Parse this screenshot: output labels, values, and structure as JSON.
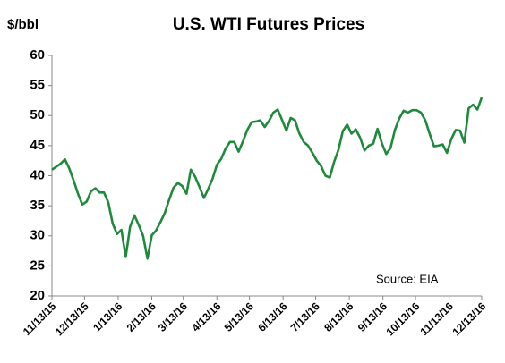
{
  "chart_data": {
    "type": "line",
    "title": "U.S. WTI Futures Prices",
    "y_label": "$/bbl",
    "annotation": "Source: EIA",
    "x": [
      "2015-11-13",
      "2015-11-17",
      "2015-11-21",
      "2015-11-25",
      "2015-11-29",
      "2015-12-03",
      "2015-12-07",
      "2015-12-11",
      "2015-12-15",
      "2015-12-19",
      "2015-12-23",
      "2015-12-27",
      "2015-12-31",
      "2016-01-04",
      "2016-01-08",
      "2016-01-12",
      "2016-01-16",
      "2016-01-20",
      "2016-01-24",
      "2016-01-28",
      "2016-02-01",
      "2016-02-05",
      "2016-02-09",
      "2016-02-13",
      "2016-02-17",
      "2016-02-21",
      "2016-02-25",
      "2016-02-29",
      "2016-03-04",
      "2016-03-08",
      "2016-03-12",
      "2016-03-16",
      "2016-03-20",
      "2016-03-24",
      "2016-03-28",
      "2016-04-01",
      "2016-04-05",
      "2016-04-09",
      "2016-04-13",
      "2016-04-17",
      "2016-04-21",
      "2016-04-25",
      "2016-04-29",
      "2016-05-03",
      "2016-05-07",
      "2016-05-11",
      "2016-05-15",
      "2016-05-19",
      "2016-05-23",
      "2016-05-27",
      "2016-05-31",
      "2016-06-04",
      "2016-06-08",
      "2016-06-12",
      "2016-06-16",
      "2016-06-20",
      "2016-06-24",
      "2016-06-28",
      "2016-07-02",
      "2016-07-06",
      "2016-07-10",
      "2016-07-14",
      "2016-07-18",
      "2016-07-22",
      "2016-07-26",
      "2016-07-30",
      "2016-08-03",
      "2016-08-07",
      "2016-08-11",
      "2016-08-15",
      "2016-08-19",
      "2016-08-23",
      "2016-08-27",
      "2016-08-31",
      "2016-09-04",
      "2016-09-08",
      "2016-09-12",
      "2016-09-16",
      "2016-09-20",
      "2016-09-24",
      "2016-09-28",
      "2016-10-02",
      "2016-10-06",
      "2016-10-10",
      "2016-10-14",
      "2016-10-18",
      "2016-10-22",
      "2016-10-26",
      "2016-10-30",
      "2016-11-03",
      "2016-11-07",
      "2016-11-11",
      "2016-11-15",
      "2016-11-19",
      "2016-11-23",
      "2016-11-27",
      "2016-12-01",
      "2016-12-05",
      "2016-12-09",
      "2016-12-13"
    ],
    "series": [
      {
        "name": "WTI",
        "color": "#1f8a3c",
        "values": [
          41,
          41.5,
          42,
          42.7,
          41.2,
          39.2,
          37,
          35.2,
          35.7,
          37.4,
          37.9,
          37.2,
          37.2,
          35.5,
          32,
          30.3,
          31,
          26.5,
          31.5,
          33.4,
          31.8,
          30,
          26.2,
          30.1,
          30.9,
          32.3,
          33.8,
          36,
          38,
          38.8,
          38.3,
          37,
          41,
          39.8,
          38.1,
          36.3,
          37.8,
          39.5,
          41.8,
          42.8,
          44.5,
          45.6,
          45.6,
          44,
          45.7,
          47.6,
          48.9,
          49,
          49.2,
          48.1,
          49.1,
          50.5,
          51,
          49.3,
          47.5,
          49.6,
          49.2,
          47,
          45.6,
          45,
          43.8,
          42.5,
          41.6,
          40,
          39.7,
          42.3,
          44.3,
          47.4,
          48.5,
          47,
          47.7,
          46.3,
          44.2,
          45,
          45.3,
          47.8,
          45.4,
          43.6,
          44.6,
          47.6,
          49.5,
          50.8,
          50.5,
          50.9,
          50.9,
          50.5,
          49.2,
          47,
          44.9,
          45,
          45.2,
          43.8,
          46.1,
          47.6,
          47.5,
          45.5,
          51.2,
          51.8,
          51,
          53
        ]
      }
    ],
    "xlim": [
      "2015-11-13",
      "2016-12-13"
    ],
    "xticks": [
      {
        "value": "2015-11-13",
        "label": "11/13/15"
      },
      {
        "value": "2015-12-13",
        "label": "12/13/15"
      },
      {
        "value": "2016-01-13",
        "label": "1/13/16"
      },
      {
        "value": "2016-02-13",
        "label": "2/13/16"
      },
      {
        "value": "2016-03-13",
        "label": "3/13/16"
      },
      {
        "value": "2016-04-13",
        "label": "4/13/16"
      },
      {
        "value": "2016-05-13",
        "label": "5/13/16"
      },
      {
        "value": "2016-06-13",
        "label": "6/13/16"
      },
      {
        "value": "2016-07-13",
        "label": "7/13/16"
      },
      {
        "value": "2016-08-13",
        "label": "8/13/16"
      },
      {
        "value": "2016-09-13",
        "label": "9/13/16"
      },
      {
        "value": "2016-10-13",
        "label": "10/13/16"
      },
      {
        "value": "2016-11-13",
        "label": "11/13/16"
      },
      {
        "value": "2016-12-13",
        "label": "12/13/16"
      }
    ],
    "ylim": [
      20,
      60
    ],
    "yticks": [
      20,
      25,
      30,
      35,
      40,
      45,
      50,
      55,
      60
    ],
    "grid": false
  }
}
